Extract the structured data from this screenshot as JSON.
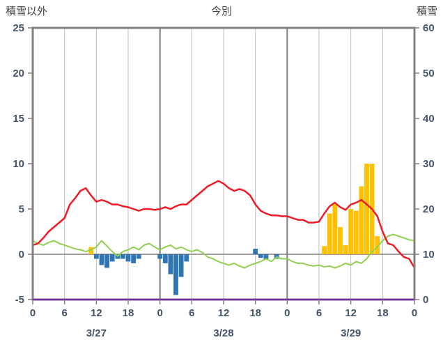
{
  "header": {
    "left_axis_title": "積雪以外",
    "chart_title": "今別",
    "right_axis_title": "積雪"
  },
  "chart_data": {
    "type": "mixed",
    "title": "今別",
    "left_axis": {
      "title": "積雪以外",
      "min": -5,
      "max": 25,
      "ticks": [
        25,
        20,
        15,
        10,
        5,
        0,
        -5
      ]
    },
    "right_axis": {
      "title": "積雪",
      "min": 0,
      "max": 60,
      "ticks": [
        60,
        50,
        40,
        30,
        20,
        10,
        0
      ]
    },
    "x_axis": {
      "hours_total": 72,
      "tick_interval": 6,
      "tick_labels": [
        "0",
        "6",
        "12",
        "18",
        "0",
        "6",
        "12",
        "18",
        "0",
        "6",
        "12",
        "18",
        "0"
      ],
      "date_labels": [
        "3/27",
        "3/28",
        "3/29"
      ]
    },
    "grid": {
      "border_color": "#808080",
      "minor_line_color": "#bfbfbf",
      "day_line_color": "#808080",
      "zero_line_color": "#808080"
    },
    "label_color": "#44546A",
    "title_color": "#404040",
    "series": [
      {
        "name": "snowfall-bars",
        "type": "bar",
        "axis": "left",
        "color": "#ffc000",
        "values": [
          0,
          0,
          0,
          0,
          0,
          0,
          0,
          0,
          0,
          0,
          0,
          0.8,
          0,
          0,
          0,
          0,
          0,
          0,
          0,
          0,
          0,
          0,
          0,
          0,
          0,
          0,
          0,
          0,
          0,
          0,
          0,
          0,
          0,
          0,
          0,
          0,
          0,
          0,
          0,
          0,
          0,
          0,
          0,
          0,
          0,
          0,
          0,
          0,
          0,
          0,
          0,
          0,
          0,
          0,
          0,
          0.9,
          4.5,
          5.5,
          3.0,
          1.0,
          5.0,
          4.8,
          7.5,
          10.0,
          10.0,
          2.0,
          0,
          0,
          0,
          0,
          0,
          0,
          0
        ]
      },
      {
        "name": "precipitation-bars",
        "type": "bar",
        "axis": "left",
        "color": "#2e75b6",
        "values": [
          0,
          0,
          0,
          0,
          0,
          0,
          0,
          0,
          0,
          0,
          0,
          0,
          -0.5,
          -1.2,
          -1.5,
          -0.8,
          -0.5,
          -0.5,
          -0.8,
          -1.0,
          -0.5,
          0,
          0,
          0,
          -0.5,
          -1.0,
          -2.2,
          -4.5,
          -2.5,
          -0.8,
          0,
          0,
          0,
          0,
          0,
          0,
          0,
          0,
          0,
          0,
          0,
          0,
          0.6,
          -0.4,
          -0.6,
          0,
          -0.5,
          0,
          0,
          0,
          0,
          0,
          0,
          0,
          0,
          0,
          0,
          0,
          0,
          0,
          0,
          0,
          0,
          0,
          0,
          0,
          0,
          0,
          0,
          0,
          0,
          0,
          0
        ]
      },
      {
        "name": "green-line",
        "type": "line",
        "axis": "left",
        "color": "#92d050",
        "width": 2,
        "values": [
          1.5,
          1.2,
          1.0,
          1.3,
          1.5,
          1.2,
          1.0,
          0.8,
          0.6,
          0.5,
          0.3,
          0.5,
          0.8,
          1.5,
          0.9,
          0.3,
          -0.2,
          0.3,
          0.5,
          0.8,
          0.5,
          1.0,
          1.2,
          0.8,
          0.5,
          0.8,
          1.0,
          0.6,
          0.8,
          0.5,
          0.3,
          0.5,
          0.2,
          -0.3,
          -0.5,
          -0.8,
          -1.0,
          -1.2,
          -1.0,
          -1.3,
          -1.5,
          -1.2,
          -1.0,
          -0.8,
          -0.5,
          -0.8,
          -0.3,
          -0.5,
          -0.5,
          -0.8,
          -1.0,
          -1.0,
          -1.2,
          -1.3,
          -1.2,
          -1.4,
          -1.3,
          -1.5,
          -1.3,
          -1.0,
          -1.2,
          -0.8,
          -1.0,
          -0.5,
          0.3,
          0.8,
          1.5,
          2.0,
          2.2,
          2.0,
          1.8,
          1.6,
          1.5
        ]
      },
      {
        "name": "temperature-line",
        "type": "line",
        "axis": "left",
        "color": "#ee1c25",
        "width": 2.5,
        "values": [
          1.0,
          1.2,
          1.8,
          2.5,
          3.0,
          3.5,
          4.0,
          5.5,
          6.2,
          7.0,
          7.3,
          6.5,
          5.8,
          6.0,
          5.8,
          5.5,
          5.5,
          5.3,
          5.2,
          5.0,
          4.8,
          5.0,
          5.0,
          4.9,
          5.0,
          5.2,
          5.0,
          5.3,
          5.5,
          5.5,
          6.0,
          6.5,
          7.0,
          7.5,
          7.8,
          8.1,
          7.8,
          7.3,
          7.0,
          7.2,
          7.0,
          6.5,
          5.5,
          4.8,
          4.5,
          4.3,
          4.3,
          4.2,
          4.2,
          4.0,
          3.8,
          3.8,
          3.5,
          3.5,
          3.6,
          4.5,
          5.3,
          5.7,
          5.2,
          4.9,
          5.5,
          5.7,
          6.0,
          5.5,
          5.0,
          4.2,
          2.5,
          1.2,
          1.0,
          0.3,
          -0.3,
          -0.5,
          -1.5
        ]
      },
      {
        "name": "snow-depth-line",
        "type": "line",
        "axis": "right",
        "color": "#7030a0",
        "width": 2.5,
        "constant": 0,
        "above_border": true
      }
    ]
  }
}
